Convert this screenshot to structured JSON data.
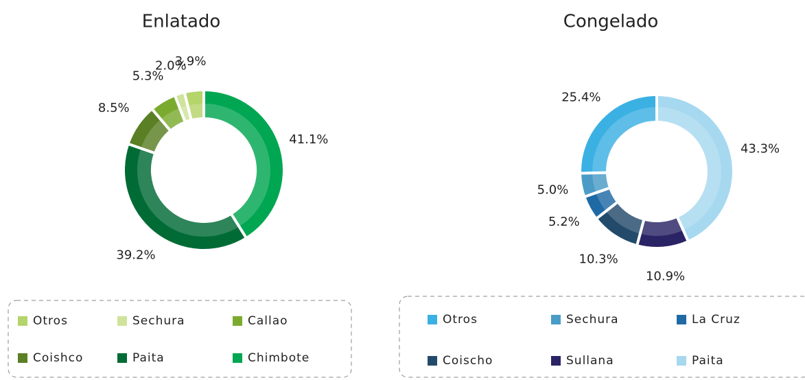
{
  "chart_data": [
    {
      "type": "donut",
      "title": "Enlatado",
      "categories": [
        "Otros",
        "Sechura",
        "Callao",
        "Coishco",
        "Paita",
        "Chimbote"
      ],
      "values": [
        3.9,
        2.0,
        5.3,
        8.5,
        39.2,
        41.1
      ],
      "value_labels": [
        "3.9%",
        "2.0%",
        "5.3%",
        "8.5%",
        "39.2%",
        "41.1%"
      ],
      "colors": [
        "#b5d46a",
        "#cfe39b",
        "#7aab2f",
        "#5b7f24",
        "#006b35",
        "#00a651"
      ]
    },
    {
      "type": "donut",
      "title": "Congelado",
      "categories": [
        "Otros",
        "Sechura",
        "La Cruz",
        "Coischo",
        "Sullana",
        "Paita"
      ],
      "values": [
        25.4,
        5.0,
        5.2,
        10.3,
        10.9,
        43.3
      ],
      "value_labels": [
        "25.4%",
        "5.0%",
        "5.2%",
        "10.3%",
        "10.9%",
        "43.3%"
      ],
      "colors": [
        "#3bb0e3",
        "#4a9cc7",
        "#1f6aa5",
        "#234a6b",
        "#2a2466",
        "#a6d8f0"
      ]
    }
  ]
}
